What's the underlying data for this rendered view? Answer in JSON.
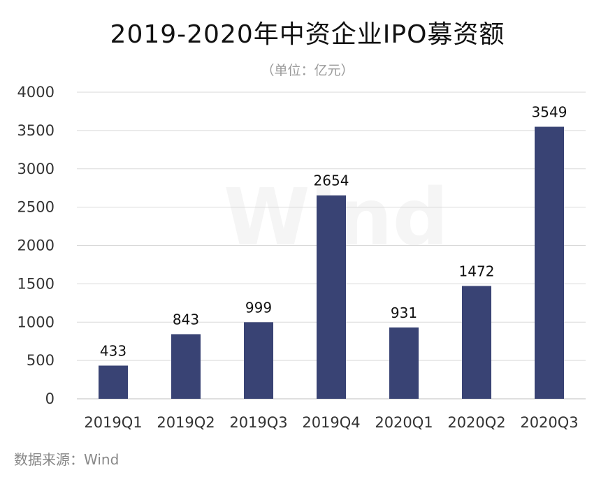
{
  "chart_data": {
    "type": "bar",
    "title": "2019-2020年中资企业IPO募资额",
    "subtitle": "（单位：亿元）",
    "categories": [
      "2019Q1",
      "2019Q2",
      "2019Q3",
      "2019Q4",
      "2020Q1",
      "2020Q2",
      "2020Q3"
    ],
    "values": [
      433,
      843,
      999,
      2654,
      931,
      1472,
      3549
    ],
    "data_labels": [
      "433",
      "843",
      "999",
      "2654",
      "931",
      "1472",
      "3549"
    ],
    "ylim": [
      0,
      4000
    ],
    "yticks": [
      0,
      500,
      1000,
      1500,
      2000,
      2500,
      3000,
      3500,
      4000
    ],
    "ytick_labels": [
      "0",
      "500",
      "1000",
      "1500",
      "2000",
      "2500",
      "3000",
      "3500",
      "4000"
    ],
    "grid": true,
    "legend": "none",
    "bar_color": "#394374",
    "grid_color": "#d9d9d9"
  },
  "watermark": "Wind",
  "source": "数据来源：Wind"
}
